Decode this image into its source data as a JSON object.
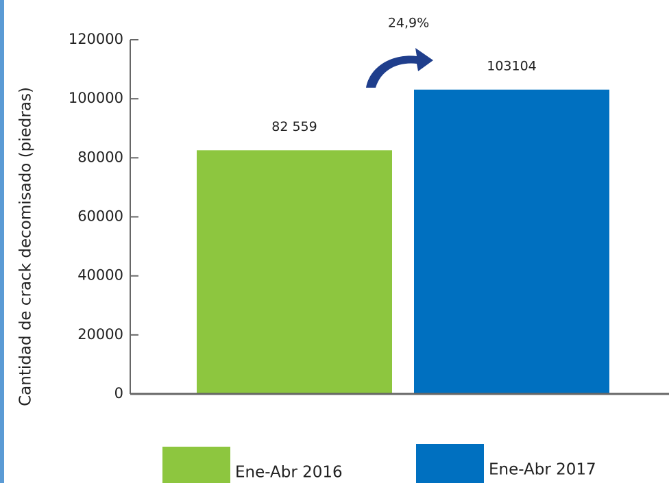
{
  "chart_data": {
    "type": "bar",
    "y_label": "Cantidad de crack decomisado (piedras)",
    "annotation": "24,9%",
    "series": [
      {
        "name": "Ene-Abr 2016",
        "color": "#8dc63f",
        "values": [
          82559
        ],
        "value_labels": [
          "82 559"
        ]
      },
      {
        "name": "Ene-Abr 2017",
        "color": "#0070c0",
        "values": [
          103104
        ]
      }
    ],
    "ylim": [
      0,
      120000
    ],
    "yticks": [
      0,
      20000,
      40000,
      60000,
      80000,
      100000,
      120000
    ]
  }
}
